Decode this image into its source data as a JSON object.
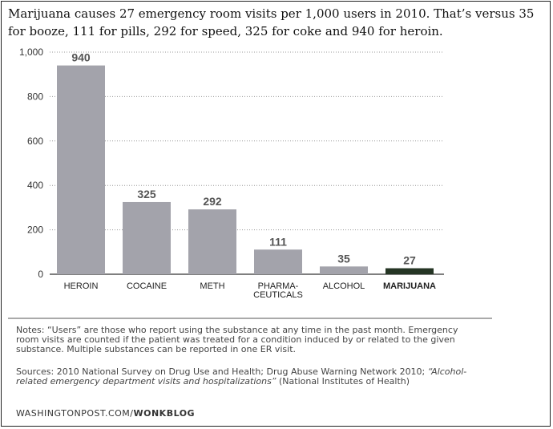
{
  "title": "Marijuana causes 27 emergency room visits per 1,000 users in 2010. That’s versus 35 for booze, 111 for pills, 292 for speed,  325 for coke and 940 for heroin.",
  "chart_data": {
    "type": "bar",
    "categories": [
      [
        "HEROIN"
      ],
      [
        "COCAINE"
      ],
      [
        "METH"
      ],
      [
        "PHARMA-",
        "CEUTICALS"
      ],
      [
        "ALCOHOL"
      ],
      [
        "MARIJUANA"
      ]
    ],
    "values": [
      940,
      325,
      292,
      111,
      35,
      27
    ],
    "value_labels": [
      "940",
      "325",
      "292",
      "111",
      "35",
      "27"
    ],
    "ylim": [
      0,
      1000
    ],
    "yticks": [
      0,
      200,
      400,
      600,
      800,
      1000
    ],
    "ytick_labels": [
      "0",
      "200",
      "400",
      "600",
      "800",
      "1,000"
    ],
    "highlight_index": 5,
    "grid": true,
    "colors": {
      "bar": "#a3a3ab",
      "highlight": "#253524",
      "grid": "#999999",
      "baseline": "#333333"
    }
  },
  "notes": "Notes: “Users” are those who report using the substance at any time in the past month. Emergency room visits are counted if the patient was treated for a condition induced by or related to the given substance. Multiple substances can be reported in one ER visit.",
  "sources": {
    "prefix": "Sources: 2010 National Survey on Drug Use and Health; Drug Abuse Warning Network 2010; ",
    "italic": "“Alcohol-related emergency department visits and hospitalizations”",
    "suffix": " (National Institutes of Health)"
  },
  "credit": {
    "site": "WASHINGTONPOST.COM/",
    "blog": "WONKBLOG"
  }
}
